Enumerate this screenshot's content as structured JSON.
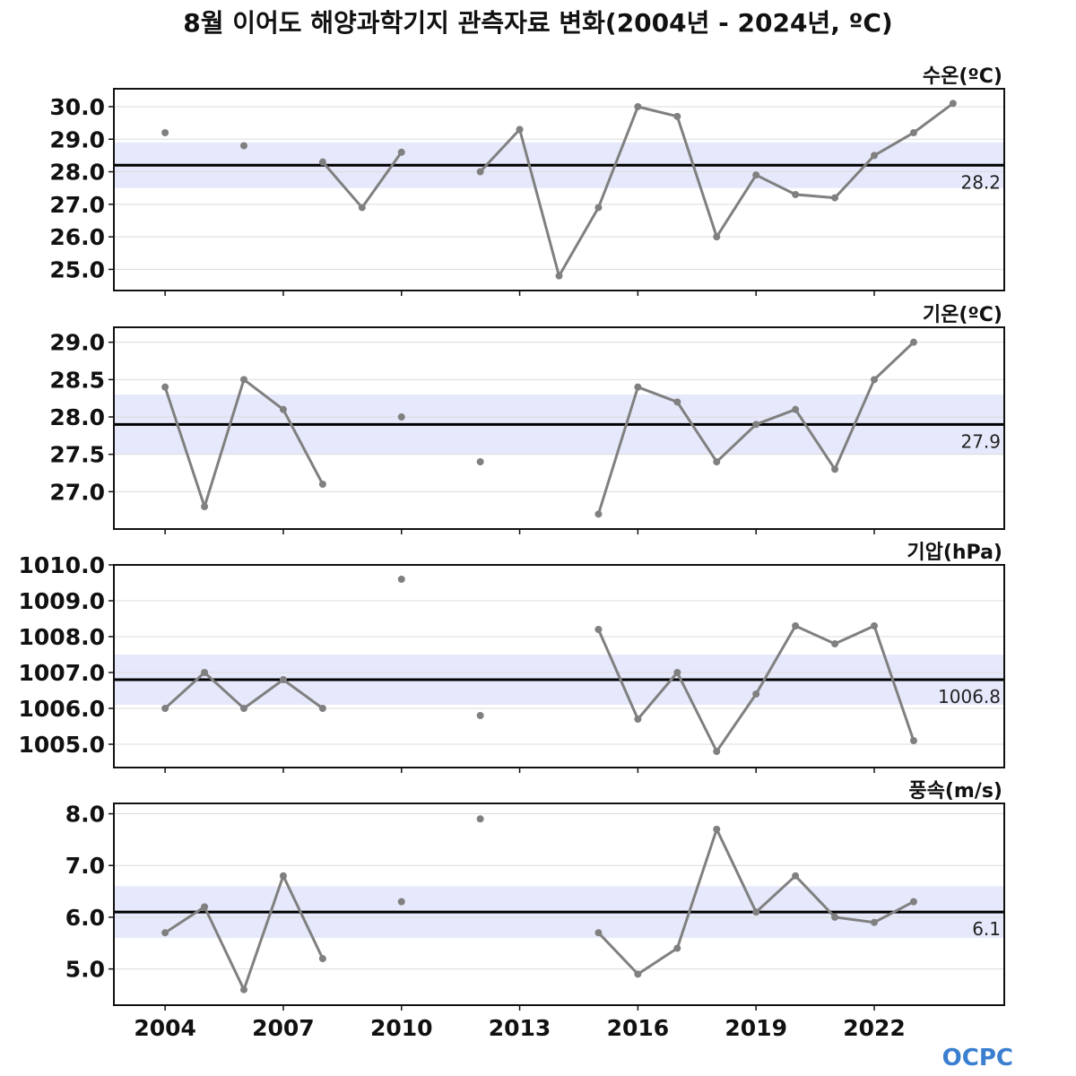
{
  "title": "8월 이어도 해양과학기지 관측자료 변화(2004년 - 2024년, ºC)",
  "logo": "OCPC",
  "chart_data": {
    "type": "line",
    "x_ticks": [
      2004,
      2007,
      2010,
      2013,
      2016,
      2019,
      2022
    ],
    "x_tick_labels": [
      "2004",
      "2007",
      "2010",
      "2013",
      "2016",
      "2019",
      "2022"
    ],
    "xlim": [
      2002.7,
      2025.3
    ],
    "years": [
      2004,
      2005,
      2006,
      2007,
      2008,
      2009,
      2010,
      2011,
      2012,
      2013,
      2014,
      2015,
      2016,
      2017,
      2018,
      2019,
      2020,
      2021,
      2022,
      2023,
      2024
    ],
    "panels": [
      {
        "name": "water-temp",
        "title": "수온(ºC)",
        "ylim": [
          24.35,
          30.55
        ],
        "yticks": [
          25.0,
          26.0,
          27.0,
          28.0,
          29.0,
          30.0
        ],
        "ytick_labels": [
          "25.0",
          "26.0",
          "27.0",
          "28.0",
          "29.0",
          "30.0"
        ],
        "mean": 28.2,
        "mean_label": "28.2",
        "band": [
          27.5,
          28.9
        ],
        "values": [
          29.2,
          null,
          28.8,
          null,
          28.3,
          26.9,
          28.6,
          null,
          28.0,
          29.3,
          24.8,
          26.9,
          30.0,
          29.7,
          26.0,
          27.9,
          27.3,
          27.2,
          28.5,
          29.2,
          30.1
        ]
      },
      {
        "name": "air-temp",
        "title": "기온(ºC)",
        "ylim": [
          26.5,
          29.2
        ],
        "yticks": [
          27.0,
          27.5,
          28.0,
          28.5,
          29.0
        ],
        "ytick_labels": [
          "27.0",
          "27.5",
          "28.0",
          "28.5",
          "29.0"
        ],
        "mean": 27.9,
        "mean_label": "27.9",
        "band": [
          27.5,
          28.3
        ],
        "values": [
          28.4,
          26.8,
          28.5,
          28.1,
          27.1,
          null,
          28.0,
          null,
          27.4,
          null,
          null,
          26.7,
          28.4,
          28.2,
          27.4,
          27.9,
          28.1,
          27.3,
          28.5,
          29.0,
          null
        ]
      },
      {
        "name": "pressure",
        "title": "기압(hPa)",
        "ylim": [
          1004.35,
          1010.0
        ],
        "yticks": [
          1005.0,
          1006.0,
          1007.0,
          1008.0,
          1009.0,
          1010.0
        ],
        "ytick_labels": [
          "1005.0",
          "1006.0",
          "1007.0",
          "1008.0",
          "1009.0",
          "1010.0"
        ],
        "mean": 1006.8,
        "mean_label": "1006.8",
        "band": [
          1006.1,
          1007.5
        ],
        "values": [
          1006.0,
          1007.0,
          1006.0,
          1006.8,
          1006.0,
          null,
          1009.6,
          null,
          1005.8,
          null,
          null,
          1008.2,
          1005.7,
          1007.0,
          1004.8,
          1006.4,
          1008.3,
          1007.8,
          1008.3,
          1005.1,
          null
        ]
      },
      {
        "name": "wind-speed",
        "title": "풍속(m/s)",
        "ylim": [
          4.3,
          8.2
        ],
        "yticks": [
          5.0,
          6.0,
          7.0,
          8.0
        ],
        "ytick_labels": [
          "5.0",
          "6.0",
          "7.0",
          "8.0"
        ],
        "mean": 6.1,
        "mean_label": "6.1",
        "band": [
          5.6,
          6.6
        ],
        "values": [
          5.7,
          6.2,
          4.6,
          6.8,
          5.2,
          null,
          6.3,
          null,
          7.9,
          null,
          null,
          5.7,
          4.9,
          5.4,
          7.7,
          6.1,
          6.8,
          6.0,
          5.9,
          6.3,
          null
        ]
      }
    ]
  }
}
